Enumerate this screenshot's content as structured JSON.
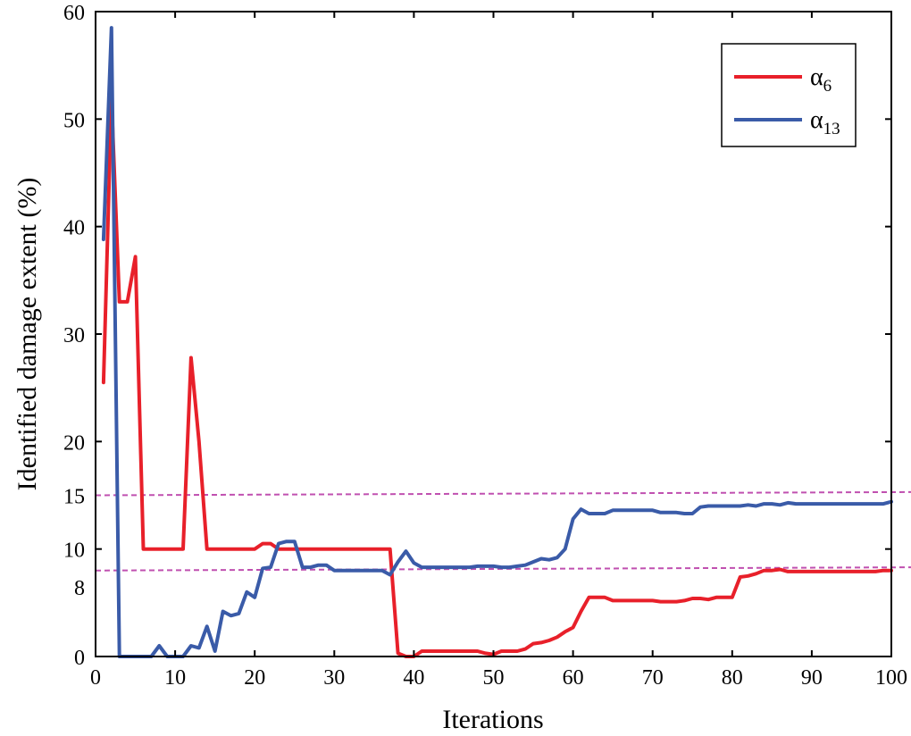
{
  "chart_data": {
    "type": "line",
    "title": "",
    "xlabel": "Iterations",
    "ylabel": "Identified damage extent (%)",
    "xlim": [
      0,
      100
    ],
    "ylim": [
      0,
      60
    ],
    "xticks": [
      0,
      10,
      20,
      30,
      40,
      50,
      60,
      70,
      80,
      90,
      100
    ],
    "yticks": [
      0,
      10,
      20,
      30,
      40,
      50,
      60
    ],
    "extra_yticks": [
      8,
      15
    ],
    "reference_lines": [
      {
        "y_start": 8,
        "y_end": 8.3,
        "color": "#c050b0",
        "style": "dashed"
      },
      {
        "y_start": 15,
        "y_end": 15.3,
        "color": "#c050b0",
        "style": "dashed"
      }
    ],
    "legend": {
      "position": "top-right",
      "entries": [
        {
          "base": "α",
          "sub": "6",
          "color": "#e8202a"
        },
        {
          "base": "α",
          "sub": "13",
          "color": "#3a5ba8"
        }
      ]
    },
    "series": [
      {
        "name": "α6",
        "color": "#e8202a",
        "points": [
          [
            1,
            25.5
          ],
          [
            2,
            52
          ],
          [
            3,
            33
          ],
          [
            4,
            33
          ],
          [
            5,
            37.2
          ],
          [
            6,
            10
          ],
          [
            7,
            10
          ],
          [
            8,
            10
          ],
          [
            9,
            10
          ],
          [
            10,
            10
          ],
          [
            11,
            10
          ],
          [
            12,
            27.8
          ],
          [
            13,
            20
          ],
          [
            14,
            10
          ],
          [
            15,
            10
          ],
          [
            16,
            10
          ],
          [
            17,
            10
          ],
          [
            18,
            10
          ],
          [
            19,
            10
          ],
          [
            20,
            10
          ],
          [
            21,
            10.5
          ],
          [
            22,
            10.5
          ],
          [
            23,
            10
          ],
          [
            24,
            10
          ],
          [
            25,
            10
          ],
          [
            26,
            10
          ],
          [
            27,
            10
          ],
          [
            28,
            10
          ],
          [
            29,
            10
          ],
          [
            30,
            10
          ],
          [
            31,
            10
          ],
          [
            32,
            10
          ],
          [
            33,
            10
          ],
          [
            34,
            10
          ],
          [
            35,
            10
          ],
          [
            36,
            10
          ],
          [
            37,
            10
          ],
          [
            38,
            0.3
          ],
          [
            39,
            0
          ],
          [
            40,
            0
          ],
          [
            41,
            0.5
          ],
          [
            42,
            0.5
          ],
          [
            43,
            0.5
          ],
          [
            44,
            0.5
          ],
          [
            45,
            0.5
          ],
          [
            46,
            0.5
          ],
          [
            47,
            0.5
          ],
          [
            48,
            0.5
          ],
          [
            49,
            0.3
          ],
          [
            50,
            0.2
          ],
          [
            51,
            0.5
          ],
          [
            52,
            0.5
          ],
          [
            53,
            0.5
          ],
          [
            54,
            0.7
          ],
          [
            55,
            1.2
          ],
          [
            56,
            1.3
          ],
          [
            57,
            1.5
          ],
          [
            58,
            1.8
          ],
          [
            59,
            2.3
          ],
          [
            60,
            2.7
          ],
          [
            61,
            4.2
          ],
          [
            62,
            5.5
          ],
          [
            63,
            5.5
          ],
          [
            64,
            5.5
          ],
          [
            65,
            5.2
          ],
          [
            66,
            5.2
          ],
          [
            67,
            5.2
          ],
          [
            68,
            5.2
          ],
          [
            69,
            5.2
          ],
          [
            70,
            5.2
          ],
          [
            71,
            5.1
          ],
          [
            72,
            5.1
          ],
          [
            73,
            5.1
          ],
          [
            74,
            5.2
          ],
          [
            75,
            5.4
          ],
          [
            76,
            5.4
          ],
          [
            77,
            5.3
          ],
          [
            78,
            5.5
          ],
          [
            79,
            5.5
          ],
          [
            80,
            5.5
          ],
          [
            81,
            7.4
          ],
          [
            82,
            7.5
          ],
          [
            83,
            7.7
          ],
          [
            84,
            8.0
          ],
          [
            85,
            8.0
          ],
          [
            86,
            8.1
          ],
          [
            87,
            7.9
          ],
          [
            88,
            7.9
          ],
          [
            89,
            7.9
          ],
          [
            90,
            7.9
          ],
          [
            91,
            7.9
          ],
          [
            92,
            7.9
          ],
          [
            93,
            7.9
          ],
          [
            94,
            7.9
          ],
          [
            95,
            7.9
          ],
          [
            96,
            7.9
          ],
          [
            97,
            7.9
          ],
          [
            98,
            7.9
          ],
          [
            99,
            8.0
          ],
          [
            100,
            8.0
          ]
        ]
      },
      {
        "name": "α13",
        "color": "#3a5ba8",
        "points": [
          [
            1,
            38.8
          ],
          [
            2,
            58.5
          ],
          [
            3,
            0
          ],
          [
            4,
            0
          ],
          [
            5,
            0
          ],
          [
            6,
            0
          ],
          [
            7,
            0
          ],
          [
            8,
            1.0
          ],
          [
            9,
            0
          ],
          [
            10,
            0
          ],
          [
            11,
            0
          ],
          [
            12,
            1.0
          ],
          [
            13,
            0.8
          ],
          [
            14,
            2.8
          ],
          [
            15,
            0.5
          ],
          [
            16,
            4.2
          ],
          [
            17,
            3.8
          ],
          [
            18,
            4.0
          ],
          [
            19,
            6.0
          ],
          [
            20,
            5.5
          ],
          [
            21,
            8.2
          ],
          [
            22,
            8.3
          ],
          [
            23,
            10.5
          ],
          [
            24,
            10.7
          ],
          [
            25,
            10.7
          ],
          [
            26,
            8.3
          ],
          [
            27,
            8.3
          ],
          [
            28,
            8.5
          ],
          [
            29,
            8.5
          ],
          [
            30,
            8.0
          ],
          [
            31,
            8.0
          ],
          [
            32,
            8.0
          ],
          [
            33,
            8.0
          ],
          [
            34,
            8.0
          ],
          [
            35,
            8.0
          ],
          [
            36,
            8.0
          ],
          [
            37,
            7.6
          ],
          [
            38,
            8.8
          ],
          [
            39,
            9.8
          ],
          [
            40,
            8.7
          ],
          [
            41,
            8.3
          ],
          [
            42,
            8.3
          ],
          [
            43,
            8.3
          ],
          [
            44,
            8.3
          ],
          [
            45,
            8.3
          ],
          [
            46,
            8.3
          ],
          [
            47,
            8.3
          ],
          [
            48,
            8.4
          ],
          [
            49,
            8.4
          ],
          [
            50,
            8.4
          ],
          [
            51,
            8.3
          ],
          [
            52,
            8.3
          ],
          [
            53,
            8.4
          ],
          [
            54,
            8.5
          ],
          [
            55,
            8.8
          ],
          [
            56,
            9.1
          ],
          [
            57,
            9.0
          ],
          [
            58,
            9.2
          ],
          [
            59,
            10.0
          ],
          [
            60,
            12.8
          ],
          [
            61,
            13.7
          ],
          [
            62,
            13.3
          ],
          [
            63,
            13.3
          ],
          [
            64,
            13.3
          ],
          [
            65,
            13.6
          ],
          [
            66,
            13.6
          ],
          [
            67,
            13.6
          ],
          [
            68,
            13.6
          ],
          [
            69,
            13.6
          ],
          [
            70,
            13.6
          ],
          [
            71,
            13.4
          ],
          [
            72,
            13.4
          ],
          [
            73,
            13.4
          ],
          [
            74,
            13.3
          ],
          [
            75,
            13.3
          ],
          [
            76,
            13.9
          ],
          [
            77,
            14.0
          ],
          [
            78,
            14.0
          ],
          [
            79,
            14.0
          ],
          [
            80,
            14.0
          ],
          [
            81,
            14.0
          ],
          [
            82,
            14.1
          ],
          [
            83,
            14.0
          ],
          [
            84,
            14.2
          ],
          [
            85,
            14.2
          ],
          [
            86,
            14.1
          ],
          [
            87,
            14.3
          ],
          [
            88,
            14.2
          ],
          [
            89,
            14.2
          ],
          [
            90,
            14.2
          ],
          [
            91,
            14.2
          ],
          [
            92,
            14.2
          ],
          [
            93,
            14.2
          ],
          [
            94,
            14.2
          ],
          [
            95,
            14.2
          ],
          [
            96,
            14.2
          ],
          [
            97,
            14.2
          ],
          [
            98,
            14.2
          ],
          [
            99,
            14.2
          ],
          [
            100,
            14.4
          ]
        ]
      }
    ]
  }
}
